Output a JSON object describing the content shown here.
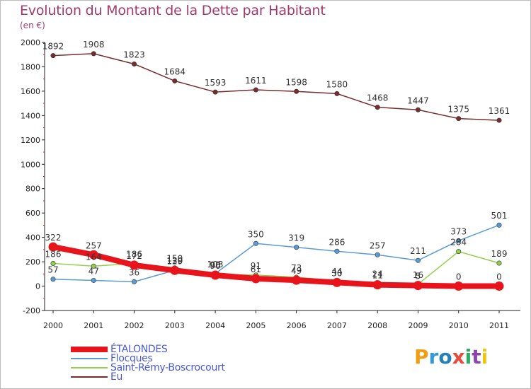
{
  "header": {
    "title": "Evolution du Montant de la Dette par Habitant",
    "subtitle": "(en €)"
  },
  "logo": {
    "text": "Proxiti",
    "letters": [
      {
        "ch": "P",
        "color": "#f39c12"
      },
      {
        "ch": "r",
        "color": "#3498db"
      },
      {
        "ch": "o",
        "color": "#2980b9"
      },
      {
        "ch": "x",
        "color": "#e74c3c"
      },
      {
        "ch": "i",
        "color": "#27ae60"
      },
      {
        "ch": "t",
        "color": "#8e44ad"
      },
      {
        "ch": "i",
        "color": "#f1c40f"
      }
    ]
  },
  "chart_data": {
    "type": "line",
    "x": [
      "2000",
      "2001",
      "2002",
      "2003",
      "2004",
      "2005",
      "2006",
      "2007",
      "2008",
      "2009",
      "2010",
      "2011"
    ],
    "ylim": [
      -200,
      2000
    ],
    "yticks": [
      "-200",
      "0",
      "200",
      "400",
      "600",
      "800",
      "1000",
      "1200",
      "1400",
      "1600",
      "1800",
      "2000"
    ],
    "grid": false,
    "legend_position": "bottom-left",
    "series": [
      {
        "name": "ÉTALONDES",
        "color": "#e8141b",
        "values": [
          322,
          257,
          172,
          129,
          90,
          61,
          49,
          30,
          11,
          5,
          0,
          0
        ],
        "labels": [
          "322",
          "257",
          "172",
          "129",
          "90",
          "61",
          "49",
          "30",
          "11",
          "5",
          "0",
          "0"
        ]
      },
      {
        "name": "Flocques",
        "color": "#5b9bd5",
        "values": [
          57,
          47,
          36,
          130,
          103,
          350,
          319,
          286,
          257,
          211,
          373,
          501
        ],
        "labels": [
          "57",
          "47",
          "36",
          "130",
          "103",
          "350",
          "319",
          "286",
          "257",
          "211",
          "373",
          "501"
        ]
      },
      {
        "name": "Saint-Rémy-Boscrocourt",
        "color": "#92d050",
        "values": [
          186,
          164,
          186,
          150,
          98,
          91,
          73,
          44,
          24,
          16,
          284,
          189
        ],
        "labels": [
          "186",
          "164",
          "186",
          "150",
          "98",
          "91",
          "73",
          "44",
          "24",
          "16",
          "284",
          "189"
        ]
      },
      {
        "name": "Eu",
        "color": "#7a2c2c",
        "values": [
          1892,
          1908,
          1823,
          1684,
          1593,
          1611,
          1598,
          1580,
          1468,
          1447,
          1375,
          1361
        ],
        "labels": [
          "1892",
          "1908",
          "1823",
          "1684",
          "1593",
          "1611",
          "1598",
          "1580",
          "1468",
          "1447",
          "1375",
          "1361"
        ]
      }
    ]
  }
}
